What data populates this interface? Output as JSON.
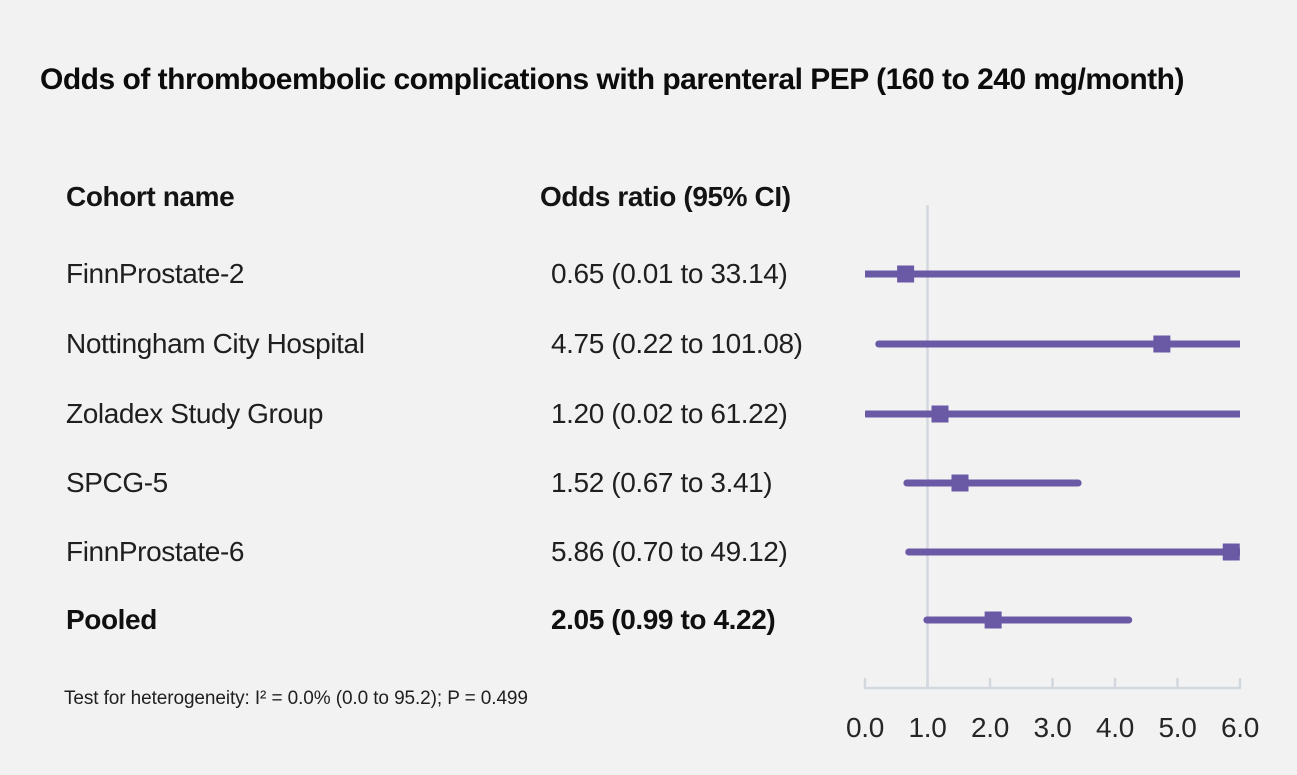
{
  "title": "Odds of thromboembolic complications with parenteral PEP (160 to 240 mg/month)",
  "table": {
    "cohort_header": "Cohort name",
    "or_header": "Odds ratio (95% CI)",
    "rows": [
      {
        "cohort": "FinnProstate-2",
        "or_text": "0.65 (0.01 to 33.14)"
      },
      {
        "cohort": "Nottingham City Hospital",
        "or_text": "4.75 (0.22 to 101.08)"
      },
      {
        "cohort": "Zoladex Study Group",
        "or_text": "1.20 (0.02 to 61.22)"
      },
      {
        "cohort": "SPCG-5",
        "or_text": "1.52 (0.67 to 3.41)"
      },
      {
        "cohort": "FinnProstate-6",
        "or_text": "5.86 (0.70 to 49.12)"
      },
      {
        "cohort": "Pooled",
        "or_text": "2.05 (0.99 to 4.22)"
      }
    ]
  },
  "footnote": "Test for heterogeneity: I² = 0.0% (0.0 to 95.2); P = 0.499",
  "chart_data": {
    "type": "scatter",
    "chart_kind": "forest-plot",
    "title": "Odds of thromboembolic complications with parenteral PEP (160 to 240 mg/month)",
    "series": [
      {
        "name": "FinnProstate-2",
        "odds_ratio": 0.65,
        "ci_low": 0.01,
        "ci_high": 33.14,
        "pooled": false
      },
      {
        "name": "Nottingham City Hospital",
        "odds_ratio": 4.75,
        "ci_low": 0.22,
        "ci_high": 101.08,
        "pooled": false
      },
      {
        "name": "Zoladex Study Group",
        "odds_ratio": 1.2,
        "ci_low": 0.02,
        "ci_high": 61.22,
        "pooled": false
      },
      {
        "name": "SPCG-5",
        "odds_ratio": 1.52,
        "ci_low": 0.67,
        "ci_high": 3.41,
        "pooled": false
      },
      {
        "name": "FinnProstate-6",
        "odds_ratio": 5.86,
        "ci_low": 0.7,
        "ci_high": 49.12,
        "pooled": false
      },
      {
        "name": "Pooled",
        "odds_ratio": 2.05,
        "ci_low": 0.99,
        "ci_high": 4.22,
        "pooled": true
      }
    ],
    "x_axis": {
      "range": [
        0,
        6
      ],
      "tick_labels": [
        "0.0",
        "1.0",
        "2.0",
        "3.0",
        "4.0",
        "5.0",
        "6.0"
      ],
      "reference_line": 1.0,
      "note": "CI bars clipped at x = 6.0"
    },
    "grid": false,
    "legend": "none",
    "colors": {
      "marker": "#6a5aa6",
      "axis_line": "#d3d8df",
      "background": "#f2f2f2",
      "text": "#1f1f1f"
    }
  }
}
